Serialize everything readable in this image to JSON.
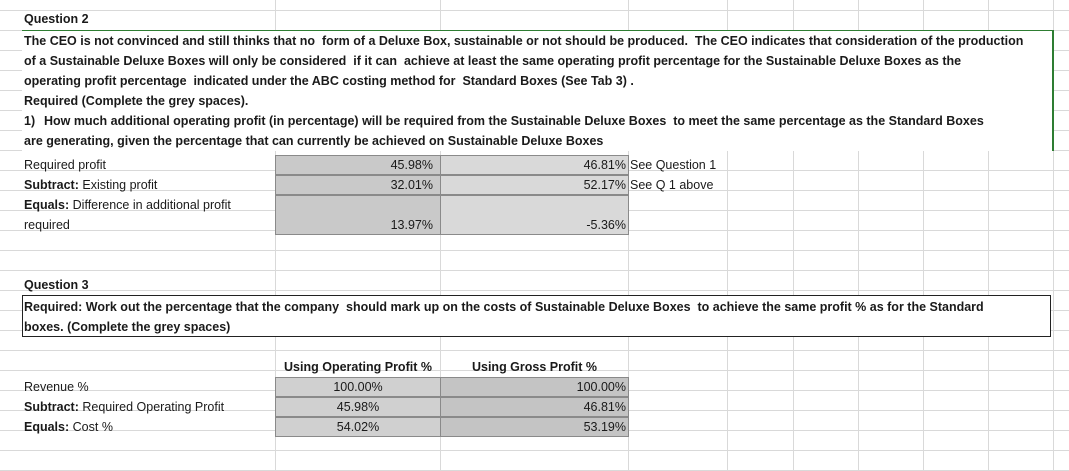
{
  "question2": {
    "heading": "Question 2",
    "text": [
      "The CEO is not convinced and still thinks that no  form of a Deluxe Box, sustainable or not should be produced.  The CEO indicates that consideration of the production",
      "of a Sustainable Deluxe Boxes will only be considered  if it can  achieve at least the same operating profit percentage for the Sustainable Deluxe Boxes as the",
      "operating profit percentage  indicated under the ABC costing method for  Standard Boxes (See Tab 3) ."
    ],
    "required": "Required (Complete the grey spaces).",
    "item_number": "1)",
    "item_text": [
      "How much additional operating profit (in percentage) will be required from the Sustainable Deluxe Boxes  to meet the same percentage as the Standard Boxes",
      "are generating, given the percentage that can currently be achieved on Sustainable Deluxe Boxes"
    ]
  },
  "table1": {
    "rows": [
      {
        "label": "Required profit",
        "values": [
          "45.98%",
          "46.81%"
        ],
        "note": "See Question 1"
      },
      {
        "prefix": "Subtract:",
        "label": "Existing profit",
        "values": [
          "32.01%",
          "52.17%"
        ],
        "note": "See Q 1 above"
      },
      {
        "prefix": "Equals:",
        "label": [
          "Difference in additional profit",
          "required"
        ],
        "values": [
          "13.97%",
          "-5.36%"
        ]
      }
    ]
  },
  "question3": {
    "heading": "Question 3",
    "required": [
      "Required: Work out the percentage that the company  should mark up on the costs of Sustainable Deluxe Boxes  to achieve the same profit % as for the Standard",
      "boxes. (Complete the grey spaces)"
    ]
  },
  "table2": {
    "headers": [
      "Using Operating Profit %",
      "Using Gross Profit %"
    ],
    "rows": [
      {
        "label": "Revenue %",
        "values": [
          "100.00%",
          "100.00%"
        ]
      },
      {
        "prefix": "Subtract:",
        "label": "Required Operating Profit",
        "values": [
          "45.98%",
          "46.81%"
        ]
      },
      {
        "prefix": "Equals:",
        "label": "Cost %",
        "values": [
          "54.02%",
          "53.19%"
        ]
      }
    ]
  }
}
